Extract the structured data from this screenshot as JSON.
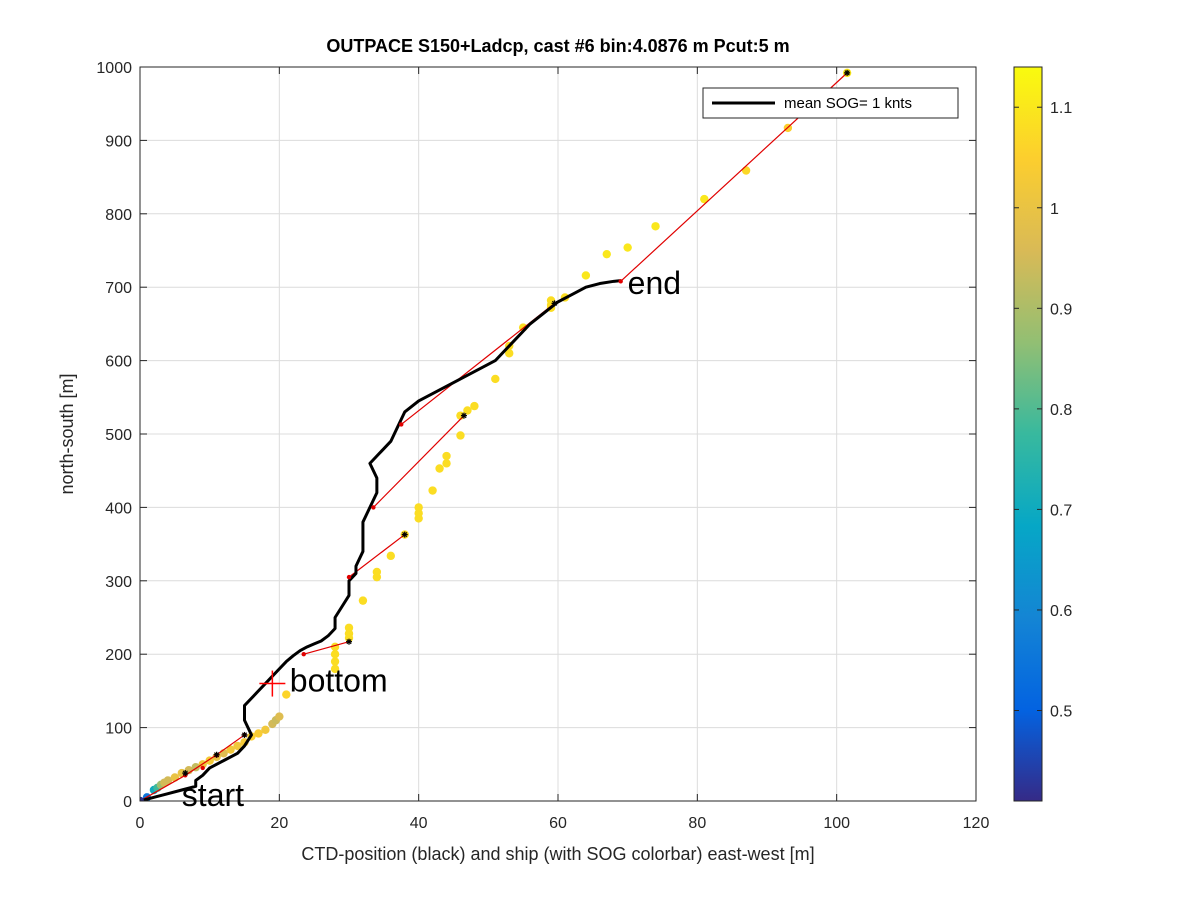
{
  "chart_data": {
    "type": "scatter",
    "title": "OUTPACE S150+Ladcp, cast #6 bin:4.0876 m  Pcut:5 m",
    "xlabel": "CTD-position (black) and ship (with SOG colorbar) east-west [m]",
    "ylabel": "north-south [m]",
    "xlim": [
      0,
      120
    ],
    "ylim": [
      0,
      1000
    ],
    "xticks": [
      0,
      20,
      40,
      60,
      80,
      100,
      120
    ],
    "yticks": [
      0,
      100,
      200,
      300,
      400,
      500,
      600,
      700,
      800,
      900,
      1000
    ],
    "grid": true,
    "legend": {
      "entries": [
        "mean SOG=  1 knts"
      ],
      "placement": "top-right"
    },
    "colorbar": {
      "range": [
        0.41,
        1.14
      ],
      "ticks": [
        0.5,
        0.6,
        0.7,
        0.8,
        0.9,
        1,
        1.1
      ],
      "tick_labels": [
        "0.5",
        "0.6",
        "0.7",
        "0.8",
        "0.9",
        "1",
        "1.1"
      ],
      "colormap": "parula"
    },
    "ctd_track": {
      "color": "#000000",
      "x": [
        0,
        2,
        4,
        6,
        8,
        8,
        9,
        10,
        12,
        14,
        15,
        16,
        15,
        15,
        16,
        17,
        18,
        19,
        20,
        21,
        22,
        23,
        24,
        25,
        26,
        27,
        28,
        28,
        29,
        30,
        30,
        31,
        31,
        32,
        32,
        32,
        33,
        34,
        34,
        33,
        34,
        35,
        36,
        37,
        38,
        40,
        43,
        46,
        49,
        51,
        52,
        53,
        54,
        55,
        56,
        58,
        60,
        62,
        64,
        66,
        68,
        69
      ],
      "y": [
        0,
        5,
        10,
        15,
        20,
        28,
        35,
        45,
        55,
        65,
        75,
        90,
        110,
        130,
        140,
        150,
        160,
        170,
        180,
        190,
        198,
        205,
        210,
        214,
        218,
        225,
        235,
        250,
        265,
        280,
        300,
        310,
        320,
        340,
        360,
        380,
        400,
        420,
        440,
        460,
        470,
        480,
        490,
        510,
        530,
        545,
        560,
        575,
        590,
        600,
        610,
        620,
        630,
        640,
        650,
        665,
        680,
        690,
        700,
        705,
        708,
        709
      ]
    },
    "ship_points": {
      "x": [
        0,
        1,
        2,
        2.5,
        3,
        3.5,
        4,
        5,
        6,
        7,
        8,
        9,
        10,
        11,
        12,
        13,
        14,
        15,
        16,
        17,
        18,
        19,
        19.5,
        20,
        21,
        28,
        28,
        28,
        28,
        30,
        30,
        30,
        32,
        34,
        34,
        36,
        38,
        40,
        40,
        40,
        42,
        43,
        44,
        44,
        46,
        46,
        47,
        48,
        51,
        53,
        53,
        55,
        59,
        59,
        59,
        61,
        64,
        67,
        70,
        74,
        81,
        87,
        93,
        101.5
      ],
      "y": [
        0,
        5,
        15,
        18,
        22,
        25,
        28,
        32,
        38,
        42,
        46,
        50,
        55,
        60,
        65,
        70,
        75,
        80,
        88,
        92,
        97,
        105,
        110,
        115,
        145,
        180,
        190,
        200,
        210,
        222,
        228,
        236,
        273,
        305,
        312,
        334,
        363,
        385,
        392,
        400,
        423,
        453,
        460,
        470,
        498,
        525,
        532,
        538,
        575,
        610,
        620,
        645,
        672,
        676,
        682,
        686,
        716,
        745,
        754,
        783,
        820,
        859,
        917,
        992
      ],
      "sog": [
        0.45,
        0.55,
        0.7,
        0.78,
        0.88,
        0.95,
        0.95,
        1.0,
        1.0,
        0.95,
        0.93,
        1.02,
        1.03,
        1.0,
        0.97,
        1.02,
        1.02,
        1.03,
        1.05,
        1.04,
        1.02,
        0.95,
        0.94,
        0.97,
        1.06,
        1.08,
        1.08,
        1.08,
        1.08,
        1.08,
        1.08,
        1.08,
        1.08,
        1.08,
        1.08,
        1.08,
        1.08,
        1.08,
        1.08,
        1.08,
        1.08,
        1.08,
        1.08,
        1.08,
        1.08,
        1.08,
        1.08,
        1.08,
        1.08,
        1.08,
        1.08,
        1.08,
        1.08,
        1.08,
        1.08,
        1.08,
        1.1,
        1.1,
        1.1,
        1.1,
        1.1,
        1.07,
        1.05,
        1.1
      ]
    },
    "red_segments": [
      {
        "x": [
          0,
          6.5,
          11
        ],
        "y": [
          0,
          35,
          63
        ]
      },
      {
        "x": [
          11,
          15
        ],
        "y": [
          63,
          90
        ]
      },
      {
        "x": [
          23.5,
          30
        ],
        "y": [
          200,
          217
        ]
      },
      {
        "x": [
          30,
          38
        ],
        "y": [
          305,
          363
        ]
      },
      {
        "x": [
          33.5,
          46.5
        ],
        "y": [
          400,
          525
        ]
      },
      {
        "x": [
          37.5,
          59.5
        ],
        "y": [
          513,
          678
        ]
      },
      {
        "x": [
          69,
          101.5
        ],
        "y": [
          708,
          992
        ]
      }
    ],
    "black_markers": {
      "x": [
        0,
        6.5,
        11,
        15,
        30,
        38,
        46.5,
        59.5,
        101.5
      ],
      "y": [
        0,
        38,
        63,
        90,
        217,
        363,
        525,
        678,
        992
      ]
    },
    "red_markers": {
      "x": [
        0,
        6.5,
        9,
        11,
        15,
        23.5,
        30,
        33.5,
        37.5,
        69
      ],
      "y": [
        0,
        35,
        45,
        62,
        90,
        200,
        305,
        400,
        513,
        708
      ]
    },
    "annotations": [
      {
        "text": "start",
        "x": 6,
        "y": -7
      },
      {
        "text": "bottom",
        "x": 21.5,
        "y": 149
      },
      {
        "text": "end",
        "x": 70,
        "y": 691
      }
    ],
    "bottom_marker": {
      "x": 19,
      "y": 160,
      "color": "#ff0000"
    }
  }
}
